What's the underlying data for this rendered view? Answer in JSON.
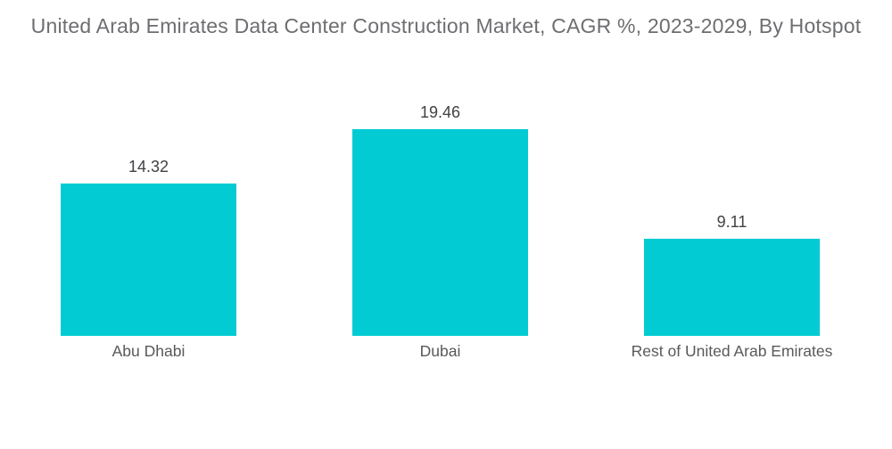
{
  "chart_data": {
    "type": "bar",
    "title": "United Arab Emirates Data Center Construction Market, CAGR %, 2023-2029, By Hotspot",
    "categories": [
      "Abu Dhabi",
      "Dubai",
      "Rest of United Arab Emirates"
    ],
    "values": [
      14.32,
      19.46,
      9.11
    ],
    "value_labels": [
      "14.32",
      "19.46",
      "9.11"
    ],
    "unit": "CAGR %",
    "xlabel": "",
    "ylabel": "",
    "ylim": [
      0,
      19.46
    ],
    "grid": false,
    "legend": false,
    "axes_visible": false,
    "bar_color": "#03CBD3"
  },
  "colors": {
    "background": "#FFFFFF",
    "bar": "#03CBD3",
    "title_text": "#6D6E71",
    "value_text": "#3F4245",
    "category_text": "#58595B"
  }
}
